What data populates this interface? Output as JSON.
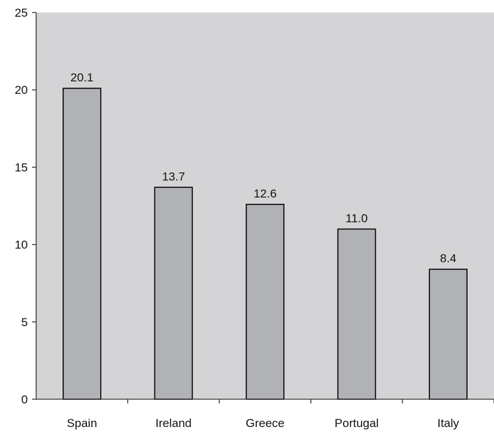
{
  "chart_data": {
    "type": "bar",
    "title": "",
    "xlabel": "",
    "ylabel": "",
    "categories": [
      "Spain",
      "Ireland",
      "Greece",
      "Portugal",
      "Italy"
    ],
    "values": [
      20.1,
      13.7,
      12.6,
      11.0,
      8.4
    ],
    "value_labels": [
      "20.1",
      "13.7",
      "12.6",
      "11.0",
      "8.4"
    ],
    "ylim": [
      0,
      25
    ],
    "yticks": [
      0,
      5,
      10,
      15,
      20,
      25
    ],
    "ytick_labels": [
      "0",
      "5",
      "10",
      "15",
      "20",
      "25"
    ],
    "grid": false,
    "legend": "none",
    "colors": {
      "plot_background": "#d4d4d6",
      "bar_fill": "#b1b2b5",
      "bar_stroke": "#000000"
    }
  }
}
